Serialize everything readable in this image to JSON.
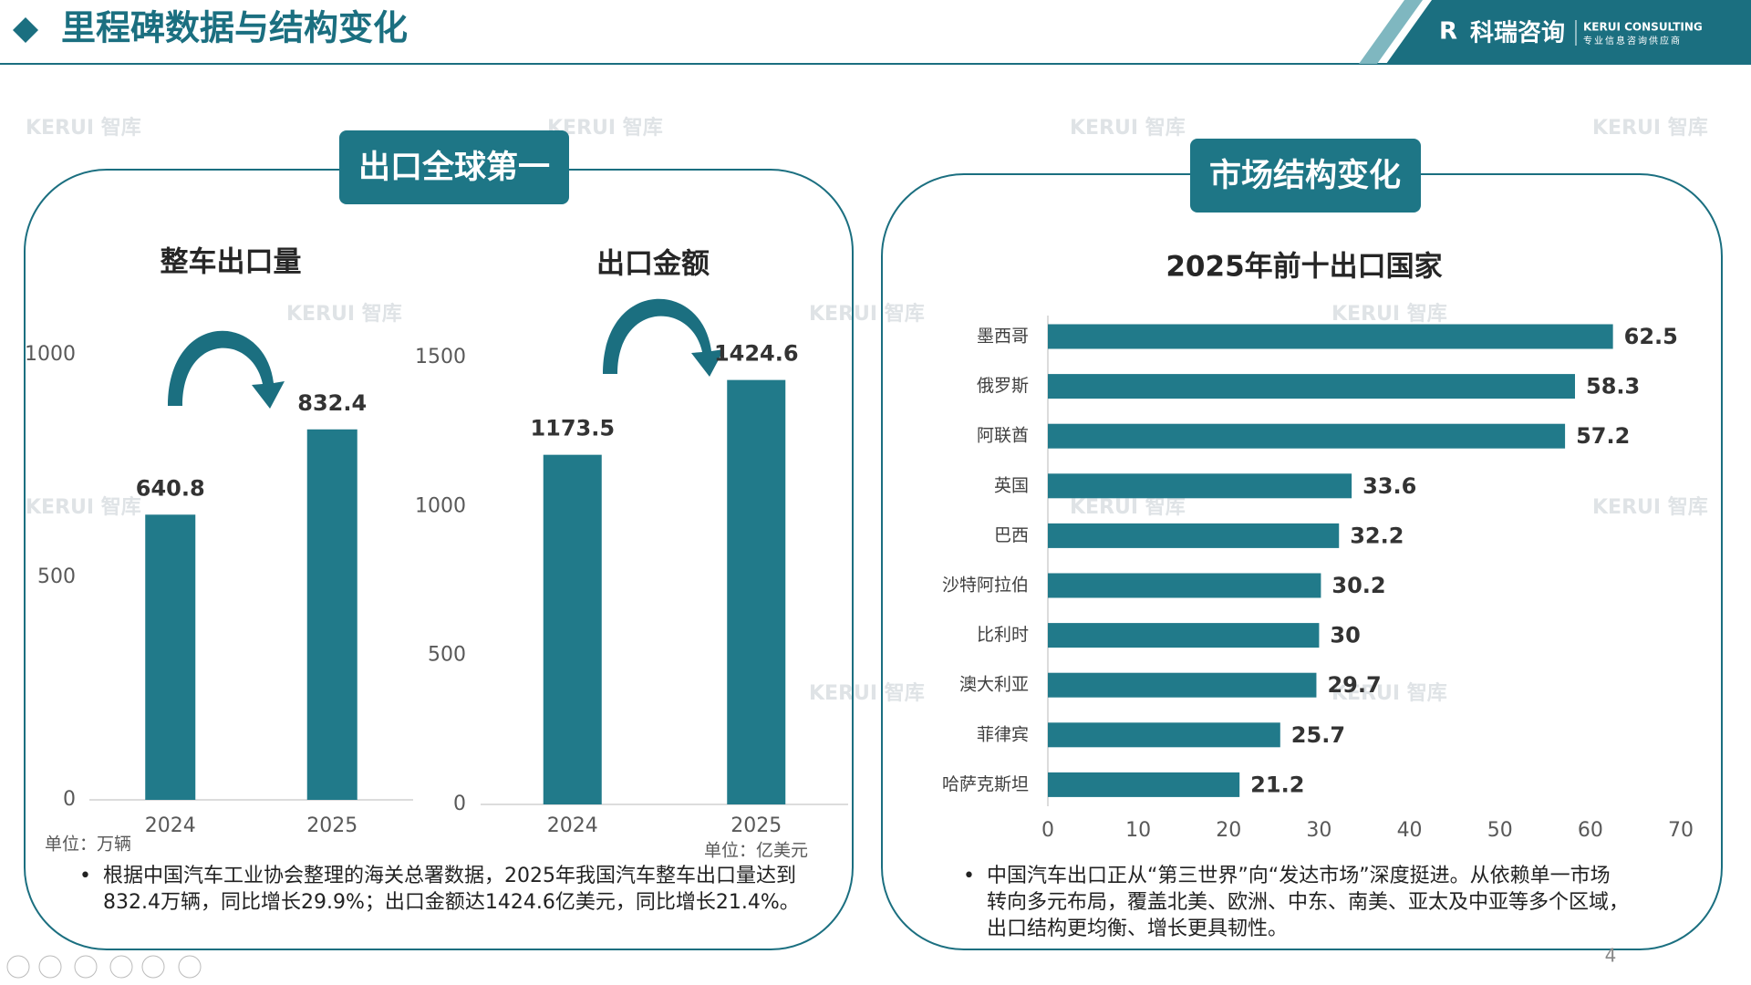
{
  "header": {
    "title": "里程碑数据与结构变化",
    "brand": "科瑞咨询",
    "brand_en": "KERUI CONSULTING",
    "brand_tagline": "专业信息咨询供应商"
  },
  "watermark": "KERUI 智库",
  "panels": [
    {
      "title": "出口全球第一",
      "note": "根据中国汽车工业协会整理的海关总署数据，2025年我国汽车整车出口量达到832.4万辆，同比增长29.9%；出口金额达1424.6亿美元，同比增长21.4%。"
    },
    {
      "title": "市场结构变化",
      "note": "中国汽车出口正从“第三世界”向“发达市场”深度挺进。从依赖单一市场转向多元布局，覆盖北美、欧洲、中东、南美、亚太及中亚等多个区域，出口结构更均衡、增长更具韧性。"
    }
  ],
  "page_number": "4",
  "chart_data": [
    {
      "type": "bar",
      "title": "整车出口量",
      "unit_note": "单位：万辆",
      "categories": [
        "2024",
        "2025"
      ],
      "values": [
        640.8,
        832.4
      ],
      "color": "#217a8a",
      "ylim": [
        0,
        1000
      ],
      "yticks": [
        0,
        500,
        1000
      ]
    },
    {
      "type": "bar",
      "title": "出口金额",
      "unit_note": "单位：亿美元",
      "categories": [
        "2024",
        "2025"
      ],
      "values": [
        1173.5,
        1424.6
      ],
      "color": "#217a8a",
      "ylim": [
        0,
        1500
      ],
      "yticks": [
        0,
        500,
        1000,
        1500
      ]
    },
    {
      "type": "hbar",
      "title": "2025年前十出口国家",
      "categories": [
        "墨西哥",
        "俄罗斯",
        "阿联酋",
        "英国",
        "巴西",
        "沙特阿拉伯",
        "比利时",
        "澳大利亚",
        "菲律宾",
        "哈萨克斯坦"
      ],
      "values": [
        62.5,
        58.3,
        57.2,
        33.6,
        32.2,
        30.2,
        30,
        29.7,
        25.7,
        21.2
      ],
      "color": "#217a8a",
      "xlim": [
        0,
        70
      ],
      "xticks": [
        0,
        10,
        20,
        30,
        40,
        50,
        60,
        70
      ]
    }
  ]
}
